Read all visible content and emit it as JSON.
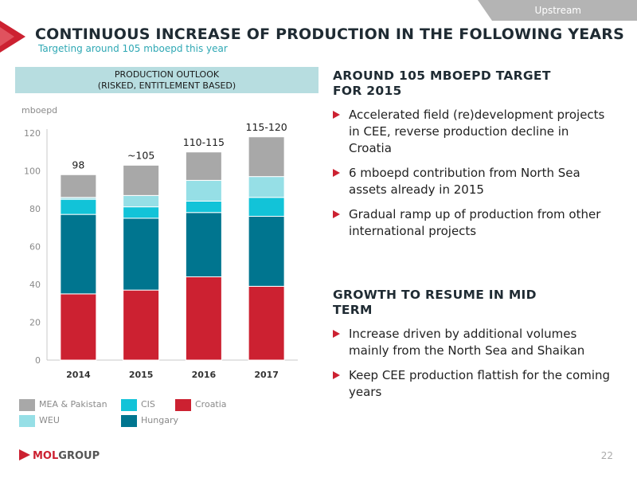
{
  "header": {
    "tag": "Upstream",
    "title": "CONTINUOUS INCREASE OF PRODUCTION IN THE FOLLOWING YEARS",
    "subtitle": "Targeting around 105 mboepd this year"
  },
  "panel": {
    "title_line1": "PRODUCTION OUTLOOK",
    "title_line2": "(RISKED, ENTITLEMENT BASED)"
  },
  "colors": {
    "croatia": "#cc2131",
    "hungary": "#00758f",
    "cis": "#12c3d8",
    "weu": "#96dfe6",
    "mea": "#a8a8a8",
    "accent": "#cc2131",
    "subtitle": "#2fa8b4"
  },
  "chart_data": {
    "type": "bar",
    "stacked": true,
    "ylabel": "mboepd",
    "ylim": [
      0,
      120
    ],
    "yticks": [
      0,
      20,
      40,
      60,
      80,
      100,
      120
    ],
    "categories": [
      "2014",
      "2015",
      "2016",
      "2017"
    ],
    "series": [
      {
        "name": "Croatia",
        "color": "#cc2131",
        "values": [
          35,
          37,
          44,
          39
        ]
      },
      {
        "name": "Hungary",
        "color": "#00758f",
        "values": [
          42,
          38,
          34,
          37
        ]
      },
      {
        "name": "CIS",
        "color": "#12c3d8",
        "values": [
          8,
          6,
          6,
          10
        ]
      },
      {
        "name": "WEU",
        "color": "#96dfe6",
        "values": [
          1,
          6,
          11,
          11
        ]
      },
      {
        "name": "MEA & Pakistan",
        "color": "#a8a8a8",
        "values": [
          12,
          16,
          15,
          21
        ]
      }
    ],
    "data_labels": [
      "98",
      "~105",
      "110-115",
      "115-120"
    ],
    "grid": false,
    "legend_position": "bottom"
  },
  "right": {
    "section1": {
      "heading_line1": "AROUND 105 MBOEPD TARGET",
      "heading_line2": "FOR 2015",
      "bullets": [
        "Accelerated field (re)development projects in CEE, reverse production decline in Croatia",
        "6 mboepd contribution from North Sea assets already in 2015",
        "Gradual ramp up of production from other international projects"
      ]
    },
    "section2": {
      "heading_line1": "GROWTH TO RESUME IN MID",
      "heading_line2": "TERM",
      "bullets": [
        "Increase driven by additional volumes mainly from the North Sea and Shaikan",
        "Keep CEE production flattish for the coming years"
      ]
    }
  },
  "footer": {
    "logo_mol": "MOL",
    "logo_group": "GROUP",
    "page": "22"
  }
}
